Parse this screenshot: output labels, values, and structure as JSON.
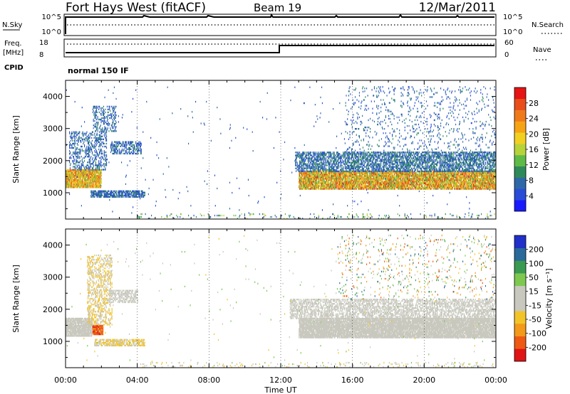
{
  "header": {
    "station": "Fort Hays West (fitACF)",
    "beam": "Beam 19",
    "date": "12/Mar/2011"
  },
  "summary_panels": {
    "nsky_label": "N.Sky",
    "nsearch_label": "N.Search",
    "nsky_ticks": [
      "10^5",
      "10^0"
    ],
    "nsearch_ticks": [
      "10^5",
      "10^0"
    ],
    "freq_label_1": "Freq.",
    "freq_label_2": "[MHz]",
    "freq_ticks": [
      "18",
      "8"
    ],
    "nave_label": "Nave",
    "nave_ticks": [
      "60",
      "0"
    ],
    "cpid_label": "CPID",
    "cpid_value": "normal 150 IF"
  },
  "chart_data": [
    {
      "type": "heatmap",
      "name": "power-panel",
      "xlabel": "Time UT",
      "ylabel": "Slant Range [km]",
      "xlim": [
        0,
        24
      ],
      "ylim": [
        180,
        4500
      ],
      "x_ticks": [
        "00:00",
        "04:00",
        "08:00",
        "12:00",
        "16:00",
        "20:00",
        "00:00"
      ],
      "y_ticks": [
        1000,
        2000,
        3000,
        4000
      ],
      "colorbar": {
        "label": "Power [dB]",
        "ticks": [
          "28",
          "24",
          "20",
          "16",
          "12",
          "8",
          "4"
        ],
        "range": [
          0,
          30
        ],
        "colors": [
          "#1a1aff",
          "#2a4dd8",
          "#2f68a8",
          "#2f8a5a",
          "#5fbb47",
          "#b8d23a",
          "#f2d021",
          "#f7a414",
          "#f07a1a",
          "#e94e1a",
          "#e61414"
        ]
      },
      "regions": [
        {
          "t": [
            0.0,
            2.0
          ],
          "r": [
            1150,
            1700
          ],
          "v": [
            12,
            26
          ],
          "density": 0.9
        },
        {
          "t": [
            0.2,
            2.3
          ],
          "r": [
            1700,
            2900
          ],
          "v": [
            4,
            9
          ],
          "density": 0.35
        },
        {
          "t": [
            1.5,
            2.8
          ],
          "r": [
            2900,
            3700
          ],
          "v": [
            4,
            9
          ],
          "density": 0.3
        },
        {
          "t": [
            2.5,
            4.2
          ],
          "r": [
            2200,
            2600
          ],
          "v": [
            4,
            9
          ],
          "density": 0.5
        },
        {
          "t": [
            1.4,
            4.4
          ],
          "r": [
            850,
            1050
          ],
          "v": [
            4,
            9
          ],
          "density": 0.7
        },
        {
          "t": [
            13.0,
            24.0
          ],
          "r": [
            1100,
            1650
          ],
          "v": [
            10,
            28
          ],
          "density": 0.85
        },
        {
          "t": [
            12.8,
            24.0
          ],
          "r": [
            1650,
            2250
          ],
          "v": [
            4,
            10
          ],
          "density": 0.55
        },
        {
          "t": [
            15.5,
            24.0
          ],
          "r": [
            2250,
            4300
          ],
          "v": [
            4,
            9
          ],
          "density": 0.06
        },
        {
          "t": [
            4.0,
            24.0
          ],
          "r": [
            180,
            350
          ],
          "v": [
            4,
            16
          ],
          "density": 0.08
        },
        {
          "t": [
            0.0,
            24.0
          ],
          "r": [
            350,
            4300
          ],
          "v": [
            4,
            8
          ],
          "density": 0.004
        }
      ]
    },
    {
      "type": "heatmap",
      "name": "velocity-panel",
      "xlabel": "Time UT",
      "ylabel": "Slant Range [km]",
      "xlim": [
        0,
        24
      ],
      "ylim": [
        180,
        4500
      ],
      "x_ticks": [
        "00:00",
        "04:00",
        "08:00",
        "12:00",
        "16:00",
        "20:00",
        "00:00"
      ],
      "y_ticks": [
        1000,
        2000,
        3000,
        4000
      ],
      "colorbar": {
        "label": "Velocity [m s⁻¹]",
        "ticks": [
          "200",
          "100",
          "50",
          "15",
          "-15",
          "-50",
          "-100",
          "-200"
        ],
        "range": [
          -250,
          250
        ],
        "colors": [
          "#e01414",
          "#ee5a14",
          "#f39a1a",
          "#f3c42a",
          "#c8c8be",
          "#c8c8be",
          "#7ec850",
          "#3a9a50",
          "#2a6a9a",
          "#2030c8"
        ]
      },
      "regions": [
        {
          "t": [
            0.0,
            1.5
          ],
          "r": [
            1150,
            1700
          ],
          "v": [
            -14,
            14
          ],
          "density": 0.9
        },
        {
          "t": [
            1.5,
            2.1
          ],
          "r": [
            1200,
            1500
          ],
          "v": [
            -220,
            -120
          ],
          "density": 0.9
        },
        {
          "t": [
            1.2,
            2.6
          ],
          "r": [
            1500,
            3700
          ],
          "v": [
            -80,
            -20
          ],
          "density": 0.35
        },
        {
          "t": [
            2.4,
            4.0
          ],
          "r": [
            2200,
            2600
          ],
          "v": [
            -14,
            14
          ],
          "density": 0.5
        },
        {
          "t": [
            1.6,
            4.4
          ],
          "r": [
            850,
            1050
          ],
          "v": [
            -90,
            -20
          ],
          "density": 0.7
        },
        {
          "t": [
            13.0,
            24.0
          ],
          "r": [
            1100,
            1700
          ],
          "v": [
            -14,
            14
          ],
          "density": 0.9
        },
        {
          "t": [
            12.5,
            24.0
          ],
          "r": [
            1700,
            2300
          ],
          "v": [
            -14,
            14
          ],
          "density": 0.5
        },
        {
          "t": [
            15.0,
            24.0
          ],
          "r": [
            2300,
            4300
          ],
          "v": [
            -200,
            200
          ],
          "density": 0.05
        },
        {
          "t": [
            4.0,
            24.0
          ],
          "r": [
            180,
            350
          ],
          "v": [
            -90,
            60
          ],
          "density": 0.08
        },
        {
          "t": [
            0.0,
            24.0
          ],
          "r": [
            350,
            4300
          ],
          "v": [
            -100,
            100
          ],
          "density": 0.004
        }
      ]
    }
  ]
}
